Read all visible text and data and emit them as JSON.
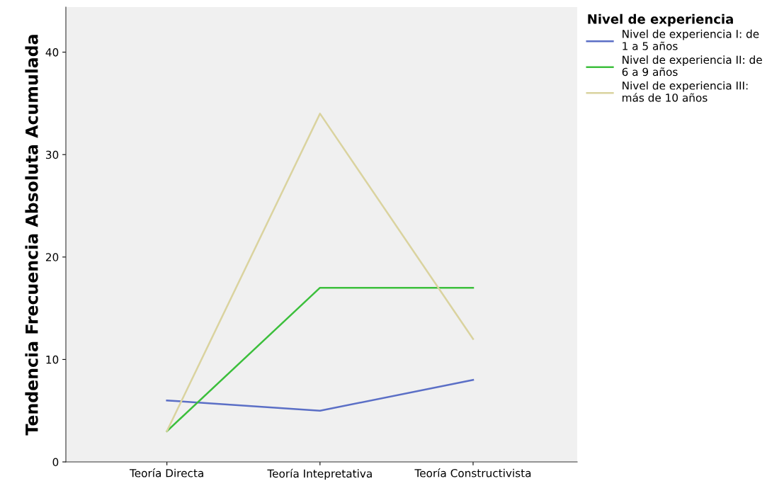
{
  "chart_data": {
    "type": "line",
    "ylabel": "Tendencia Frecuencia Absoluta Acumulada",
    "legend_title": "Nivel de experiencia",
    "categories": [
      "Teoría Directa",
      "Teoría Intepretativa",
      "Teoría Constructivista"
    ],
    "series": [
      {
        "name": "Nivel de experiencia I: de\n1 a 5 años",
        "color": "#5b6fc6",
        "values": [
          6,
          5,
          8
        ]
      },
      {
        "name": "Nivel de experiencia II: de\n6 a 9 años",
        "color": "#3cbf3c",
        "values": [
          3,
          17,
          17
        ]
      },
      {
        "name": "Nivel de experiencia III:\nmás de 10 años",
        "color": "#dad39f",
        "values": [
          3,
          34,
          12
        ]
      }
    ],
    "ylim": [
      0,
      44.4
    ],
    "yticks": [
      0,
      10,
      20,
      30,
      40
    ],
    "grid": false,
    "legend": "top right",
    "marker": "none",
    "line_style": "solid"
  }
}
